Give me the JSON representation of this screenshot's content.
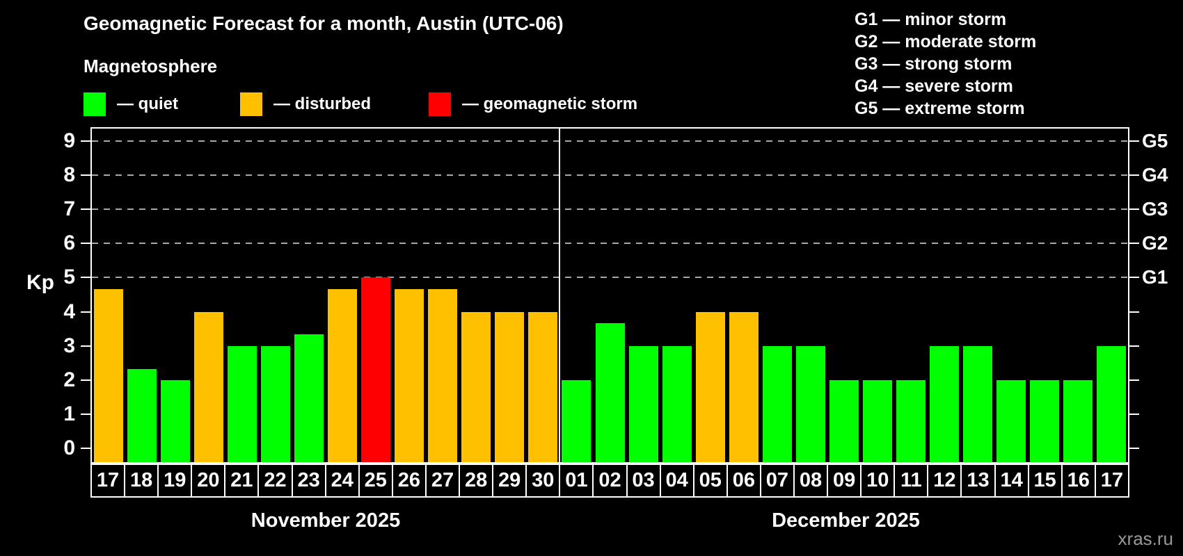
{
  "title": "Geomagnetic Forecast for a month, Austin (UTC-06)",
  "subtitle": "Magnetosphere",
  "watermark": "xras.ru",
  "storm_scale": [
    "G1 — minor storm",
    "G2 — moderate storm",
    "G3 — strong storm",
    "G4 — severe storm",
    "G5 — extreme storm"
  ],
  "legend": {
    "items": [
      {
        "label": "— quiet",
        "state": "quiet",
        "color": "#00ff00"
      },
      {
        "label": "— disturbed",
        "state": "disturbed",
        "color": "#ffc000"
      },
      {
        "label": "— geomagnetic storm",
        "state": "storm",
        "color": "#ff0000"
      }
    ]
  },
  "chart_data": {
    "type": "bar",
    "title": "Geomagnetic Forecast for a month, Austin (UTC-06)",
    "subtitle": "Magnetosphere",
    "xlabel": "",
    "ylabel": "Kp",
    "ylim": [
      0,
      9.4
    ],
    "yticks": [
      0,
      1,
      2,
      3,
      4,
      5,
      6,
      7,
      8,
      9
    ],
    "gridlines_at_kp": [
      5,
      6,
      7,
      8,
      9
    ],
    "grid": "dashed horizontal lines at storm levels only",
    "legend_position": "top-left",
    "right_axis": [
      {
        "label": "G1",
        "kp": 5
      },
      {
        "label": "G2",
        "kp": 6
      },
      {
        "label": "G3",
        "kp": 7
      },
      {
        "label": "G4",
        "kp": 8
      },
      {
        "label": "G5",
        "kp": 9
      }
    ],
    "colors": {
      "quiet": "#00ff00",
      "disturbed": "#ffc000",
      "storm": "#ff0000"
    },
    "months": [
      {
        "label": "November 2025",
        "days": [
          "17",
          "18",
          "19",
          "20",
          "21",
          "22",
          "23",
          "24",
          "25",
          "26",
          "27",
          "28",
          "29",
          "30"
        ],
        "values": [
          4.67,
          2.33,
          2,
          4,
          3,
          3,
          3.33,
          4.67,
          5,
          4.67,
          4.67,
          4,
          4,
          4
        ],
        "states": [
          "disturbed",
          "quiet",
          "quiet",
          "disturbed",
          "quiet",
          "quiet",
          "quiet",
          "disturbed",
          "storm",
          "disturbed",
          "disturbed",
          "disturbed",
          "disturbed",
          "disturbed"
        ]
      },
      {
        "label": "December 2025",
        "days": [
          "01",
          "02",
          "03",
          "04",
          "05",
          "06",
          "07",
          "08",
          "09",
          "10",
          "11",
          "12",
          "13",
          "14",
          "15",
          "16",
          "17"
        ],
        "values": [
          2,
          3.67,
          3,
          3,
          4,
          4,
          3,
          3,
          2,
          2,
          2,
          3,
          3,
          2,
          2,
          2,
          3
        ],
        "states": [
          "quiet",
          "quiet",
          "quiet",
          "quiet",
          "disturbed",
          "disturbed",
          "quiet",
          "quiet",
          "quiet",
          "quiet",
          "quiet",
          "quiet",
          "quiet",
          "quiet",
          "quiet",
          "quiet",
          "quiet"
        ]
      }
    ]
  }
}
